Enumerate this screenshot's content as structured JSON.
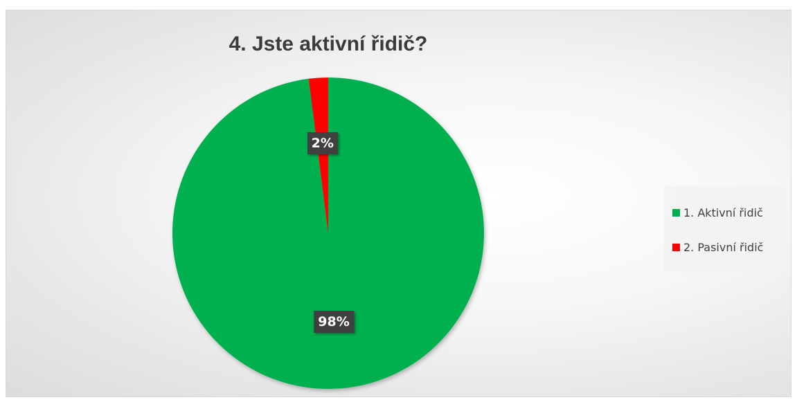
{
  "chart_data": {
    "type": "pie",
    "title": "4. Jste aktivní řidič?",
    "categories": [
      "1. Aktivní řidič",
      "2. Pasivní řidič"
    ],
    "values": [
      98,
      2
    ],
    "data_labels": [
      "98%",
      "2%"
    ],
    "colors": [
      "#00b050",
      "#ff0000"
    ],
    "legend_position": "right"
  }
}
